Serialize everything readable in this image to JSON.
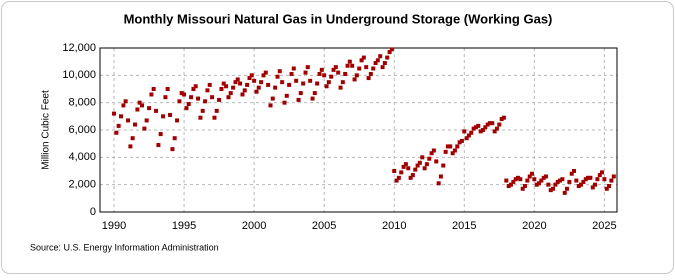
{
  "chart_data": {
    "type": "scatter",
    "title": "Monthly Missouri Natural Gas in Underground Storage (Working Gas)",
    "y_label": "Million Cubic Feet",
    "source": "Source: U.S. Energy Information Administration",
    "color": "#a00000",
    "grid": true,
    "xlim": [
      1989,
      2025.9
    ],
    "xticks": [
      1990,
      1995,
      2000,
      2005,
      2010,
      2015,
      2020,
      2025
    ],
    "ylim": [
      0,
      12000
    ],
    "yticks": [
      0,
      {
        "value": 2000,
        "label": "2,000"
      },
      {
        "value": 4000,
        "label": "4,000"
      },
      {
        "value": 6000,
        "label": "6,000"
      },
      {
        "value": 8000,
        "label": "8,000"
      },
      {
        "value": 10000,
        "label": "10,000"
      },
      {
        "value": 12000,
        "label": "12,000"
      }
    ],
    "x": [
      1990,
      1990.17,
      1990.33,
      1990.5,
      1990.67,
      1990.83,
      1991,
      1991.17,
      1991.33,
      1991.5,
      1991.67,
      1991.83,
      1992,
      1992.17,
      1992.33,
      1992.5,
      1992.67,
      1992.83,
      1993,
      1993.17,
      1993.33,
      1993.5,
      1993.67,
      1993.83,
      1994,
      1994.17,
      1994.33,
      1994.5,
      1994.67,
      1994.83,
      1995,
      1995.17,
      1995.33,
      1995.5,
      1995.67,
      1995.83,
      1996,
      1996.17,
      1996.33,
      1996.5,
      1996.67,
      1996.83,
      1997,
      1997.17,
      1997.33,
      1997.5,
      1997.67,
      1997.83,
      1998,
      1998.17,
      1998.33,
      1998.5,
      1998.67,
      1998.83,
      1999,
      1999.17,
      1999.33,
      1999.5,
      1999.67,
      1999.83,
      2000,
      2000.17,
      2000.33,
      2000.5,
      2000.67,
      2000.83,
      2001,
      2001.17,
      2001.33,
      2001.5,
      2001.67,
      2001.83,
      2002,
      2002.17,
      2002.33,
      2002.5,
      2002.67,
      2002.83,
      2003,
      2003.17,
      2003.33,
      2003.5,
      2003.67,
      2003.83,
      2004,
      2004.17,
      2004.33,
      2004.5,
      2004.67,
      2004.83,
      2005,
      2005.17,
      2005.33,
      2005.5,
      2005.67,
      2005.83,
      2006,
      2006.17,
      2006.33,
      2006.5,
      2006.67,
      2006.83,
      2007,
      2007.17,
      2007.33,
      2007.5,
      2007.67,
      2007.83,
      2008,
      2008.17,
      2008.33,
      2008.5,
      2008.67,
      2008.83,
      2009,
      2009.17,
      2009.33,
      2009.5,
      2009.67,
      2009.83,
      2010,
      2010.17,
      2010.33,
      2010.5,
      2010.67,
      2010.83,
      2011,
      2011.17,
      2011.33,
      2011.5,
      2011.67,
      2011.83,
      2012,
      2012.17,
      2012.33,
      2012.5,
      2012.67,
      2012.83,
      2013,
      2013.17,
      2013.33,
      2013.5,
      2013.67,
      2013.83,
      2014,
      2014.17,
      2014.33,
      2014.5,
      2014.67,
      2014.83,
      2015,
      2015.17,
      2015.33,
      2015.5,
      2015.67,
      2015.83,
      2016,
      2016.17,
      2016.33,
      2016.5,
      2016.67,
      2016.83,
      2017,
      2017.17,
      2017.33,
      2017.5,
      2017.67,
      2017.83,
      2018,
      2018.17,
      2018.33,
      2018.5,
      2018.67,
      2018.83,
      2019,
      2019.17,
      2019.33,
      2019.5,
      2019.67,
      2019.83,
      2020,
      2020.17,
      2020.33,
      2020.5,
      2020.67,
      2020.83,
      2021,
      2021.17,
      2021.33,
      2021.5,
      2021.67,
      2021.83,
      2022,
      2022.17,
      2022.33,
      2022.5,
      2022.67,
      2022.83,
      2023,
      2023.17,
      2023.33,
      2023.5,
      2023.67,
      2023.83,
      2024,
      2024.17,
      2024.33,
      2024.5,
      2024.67,
      2024.83,
      2025,
      2025.17,
      2025.33,
      2025.5,
      2025.67
    ],
    "values": [
      7200,
      5800,
      6300,
      7000,
      7800,
      8100,
      6700,
      4800,
      5400,
      6400,
      7500,
      8000,
      7800,
      6100,
      6700,
      7600,
      8600,
      9000,
      7400,
      4900,
      5700,
      7000,
      8400,
      9000,
      7100,
      4600,
      5400,
      6700,
      8100,
      8700,
      8600,
      7600,
      7900,
      8400,
      9000,
      9200,
      8300,
      6900,
      7400,
      8100,
      8900,
      9300,
      8400,
      6900,
      7400,
      8200,
      9000,
      9400,
      9200,
      8400,
      8700,
      9100,
      9500,
      9700,
      9400,
      8600,
      8900,
      9300,
      9800,
      10000,
      9600,
      8800,
      9100,
      9500,
      10000,
      10200,
      9300,
      7800,
      8300,
      9100,
      9900,
      10300,
      9500,
      8000,
      8500,
      9300,
      10100,
      10500,
      9600,
      8200,
      8700,
      9400,
      10200,
      10600,
      9600,
      8300,
      8700,
      9400,
      10100,
      10400,
      10000,
      9200,
      9500,
      9900,
      10400,
      10600,
      10200,
      9100,
      9500,
      10100,
      10700,
      11000,
      10700,
      9700,
      10000,
      10500,
      11100,
      11300,
      10600,
      9800,
      10100,
      10500,
      10900,
      11100,
      11400,
      10600,
      10900,
      11300,
      11700,
      11900,
      3000,
      2300,
      2500,
      2900,
      3300,
      3500,
      3200,
      2500,
      2700,
      3100,
      3400,
      3600,
      4000,
      3200,
      3500,
      3900,
      4300,
      4500,
      3700,
      2100,
      2600,
      3400,
      4400,
      4800,
      4800,
      4300,
      4500,
      4800,
      5100,
      5200,
      5900,
      5400,
      5600,
      5800,
      6100,
      6200,
      6300,
      5900,
      6000,
      6200,
      6400,
      6500,
      6500,
      5900,
      6100,
      6400,
      6800,
      6900,
      2300,
      1900,
      2000,
      2200,
      2400,
      2500,
      2400,
      1700,
      1900,
      2300,
      2600,
      2800,
      2400,
      2000,
      2100,
      2300,
      2500,
      2600,
      2000,
      1600,
      1700,
      2000,
      2200,
      2300,
      2400,
      1400,
      1700,
      2200,
      2800,
      3000,
      2300,
      1900,
      2000,
      2200,
      2400,
      2500,
      2500,
      1800,
      2000,
      2400,
      2700,
      2900,
      2400,
      1700,
      1900,
      2300,
      2600
    ]
  }
}
